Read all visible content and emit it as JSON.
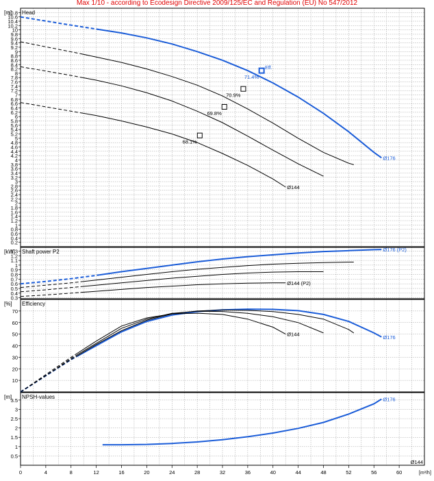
{
  "banner": "Max 1/10 - according to Ecodesign Directive 2009/125/EC and Regulation (EU) No 547/2012",
  "colors": {
    "blue": "#1a5cd8",
    "black": "#000000",
    "grid": "#9a9a9a",
    "frame": "#000000",
    "banner": "#e00000"
  },
  "chart_data": [
    {
      "type": "line",
      "title": "Head",
      "ylabel": "[m]",
      "xlim": [
        0,
        64
      ],
      "ylim": [
        0,
        11
      ],
      "y_ticks": [
        0.2,
        0.4,
        0.6,
        0.8,
        1.0,
        1.2,
        1.4,
        1.6,
        1.8,
        2.0,
        2.2,
        2.4,
        2.6,
        2.8,
        3.0,
        3.2,
        3.4,
        3.6,
        3.8,
        4.0,
        4.2,
        4.4,
        4.6,
        4.8,
        5.0,
        5.2,
        5.4,
        5.6,
        5.8,
        6.0,
        6.2,
        6.4,
        6.6,
        6.8,
        7.0,
        7.2,
        7.4,
        7.6,
        7.8,
        8.0,
        8.2,
        8.4,
        8.6,
        8.8,
        9.0,
        9.2,
        9.4,
        9.6,
        9.8,
        10.0,
        10.2,
        10.4,
        10.6,
        10.8
      ],
      "grid": true,
      "series": [
        {
          "name": "Ø176",
          "color": "blue",
          "dashed_until": 12.5,
          "x": [
            0,
            4,
            8,
            12,
            16,
            20,
            24,
            28,
            32,
            36,
            40,
            44,
            48,
            52,
            56,
            57.2
          ],
          "y": [
            10.6,
            10.41,
            10.22,
            10.04,
            9.86,
            9.63,
            9.35,
            9.0,
            8.6,
            8.12,
            7.55,
            6.9,
            6.15,
            5.3,
            4.35,
            4.1
          ]
        },
        {
          "name": "",
          "color": "black",
          "dashed_until": 9.5,
          "x": [
            0,
            4,
            8,
            12,
            16,
            20,
            24,
            28,
            32,
            36,
            40,
            44,
            48,
            52,
            52.8
          ],
          "y": [
            9.45,
            9.22,
            8.99,
            8.75,
            8.5,
            8.2,
            7.85,
            7.45,
            6.95,
            6.35,
            5.7,
            5.0,
            4.35,
            3.85,
            3.78
          ]
        },
        {
          "name": "",
          "color": "black",
          "dashed_until": 9.5,
          "x": [
            0,
            4,
            8,
            12,
            16,
            20,
            24,
            28,
            32,
            36,
            40,
            44,
            48
          ],
          "y": [
            8.3,
            8.1,
            7.9,
            7.68,
            7.42,
            7.1,
            6.72,
            6.25,
            5.72,
            5.1,
            4.45,
            3.82,
            3.25
          ]
        },
        {
          "name": "Ø144",
          "color": "black",
          "dashed_until": 9.5,
          "x": [
            0,
            4,
            8,
            12,
            16,
            20,
            24,
            28,
            32,
            36,
            40,
            42
          ],
          "y": [
            6.65,
            6.45,
            6.25,
            6.05,
            5.8,
            5.52,
            5.2,
            4.8,
            4.3,
            3.75,
            3.12,
            2.75
          ]
        }
      ],
      "efficiency_points": [
        {
          "x": 38.2,
          "y": 8.12,
          "label": "71.4%",
          "color": "blue",
          "mark": "Eff."
        },
        {
          "x": 35.3,
          "y": 7.28,
          "label": "70.9%",
          "color": "black"
        },
        {
          "x": 32.3,
          "y": 6.45,
          "label": "69.8%",
          "color": "black"
        },
        {
          "x": 28.4,
          "y": 5.13,
          "label": "68.1%",
          "color": "black"
        }
      ]
    },
    {
      "type": "line",
      "title": "Shaft power P2",
      "ylabel": "[kW]",
      "xlim": [
        0,
        64
      ],
      "ylim": [
        0.28,
        1.38
      ],
      "y_ticks": [
        0.3,
        0.4,
        0.5,
        0.6,
        0.7,
        0.8,
        0.9,
        1.0,
        1.1,
        1.2,
        1.3
      ],
      "grid": true,
      "series": [
        {
          "name": "Ø176 (P2)",
          "color": "blue",
          "dashed_until": 12.5,
          "x": [
            0,
            4,
            8,
            12,
            16,
            20,
            24,
            28,
            32,
            36,
            40,
            44,
            48,
            52,
            56,
            57.2
          ],
          "y": [
            0.6,
            0.65,
            0.71,
            0.78,
            0.86,
            0.93,
            1.0,
            1.07,
            1.13,
            1.18,
            1.22,
            1.26,
            1.29,
            1.31,
            1.33,
            1.335
          ]
        },
        {
          "name": "",
          "color": "black",
          "dashed_until": 9.5,
          "x": [
            0,
            4,
            8,
            12,
            16,
            20,
            24,
            28,
            32,
            36,
            40,
            44,
            48,
            52,
            52.8
          ],
          "y": [
            0.52,
            0.57,
            0.62,
            0.68,
            0.74,
            0.8,
            0.86,
            0.91,
            0.95,
            0.99,
            1.02,
            1.04,
            1.055,
            1.065,
            1.065
          ]
        },
        {
          "name": "",
          "color": "black",
          "dashed_until": 9.5,
          "x": [
            0,
            4,
            8,
            12,
            16,
            20,
            24,
            28,
            32,
            36,
            40,
            44,
            48
          ],
          "y": [
            0.43,
            0.47,
            0.52,
            0.57,
            0.62,
            0.67,
            0.72,
            0.76,
            0.8,
            0.83,
            0.85,
            0.86,
            0.86
          ]
        },
        {
          "name": "Ø144 (P2)",
          "color": "black",
          "dashed_until": 9.5,
          "x": [
            0,
            4,
            8,
            12,
            16,
            20,
            24,
            28,
            32,
            36,
            40,
            42
          ],
          "y": [
            0.33,
            0.36,
            0.4,
            0.44,
            0.48,
            0.52,
            0.55,
            0.58,
            0.6,
            0.615,
            0.62,
            0.62
          ]
        }
      ]
    },
    {
      "type": "line",
      "title": "Efficiency",
      "ylabel": "[%]",
      "xlim": [
        0,
        64
      ],
      "ylim": [
        0,
        80
      ],
      "y_ticks": [
        10,
        20,
        30,
        40,
        50,
        60,
        70
      ],
      "grid": true,
      "series": [
        {
          "name": "Ø176",
          "color": "blue",
          "dashed_until": 9,
          "x": [
            0,
            4,
            8,
            12,
            16,
            20,
            24,
            28,
            32,
            36,
            40,
            44,
            48,
            52,
            56,
            57.2
          ],
          "y": [
            0,
            14,
            28,
            40,
            52,
            61,
            66.5,
            69.5,
            71,
            71.5,
            71.4,
            70.3,
            67,
            61,
            51,
            47.5
          ]
        },
        {
          "name": "",
          "color": "black",
          "dashed_until": 9,
          "x": [
            0,
            4,
            8,
            12,
            16,
            20,
            24,
            28,
            32,
            36,
            40,
            44,
            48,
            52,
            52.8
          ],
          "y": [
            0,
            14,
            28,
            41,
            53,
            62,
            67.5,
            70,
            70.9,
            70.6,
            69.5,
            67,
            63,
            54,
            51
          ]
        },
        {
          "name": "",
          "color": "black",
          "dashed_until": 9,
          "x": [
            0,
            4,
            8,
            12,
            16,
            20,
            24,
            28,
            32,
            36,
            40,
            44,
            48
          ],
          "y": [
            0,
            14,
            29,
            42,
            55,
            63,
            68,
            69.8,
            69.6,
            68,
            65,
            60,
            51
          ]
        },
        {
          "name": "Ø144",
          "color": "black",
          "dashed_until": 9,
          "x": [
            0,
            4,
            8,
            12,
            16,
            20,
            24,
            28,
            32,
            36,
            40,
            42
          ],
          "y": [
            0,
            15,
            30,
            44,
            57,
            64,
            67.5,
            68.1,
            67,
            63,
            56,
            50
          ]
        }
      ]
    },
    {
      "type": "line",
      "title": "NPSH-values",
      "ylabel": "[m]",
      "xlabel": "[m³/h]",
      "xlim": [
        0,
        64
      ],
      "ylim": [
        0,
        3.9
      ],
      "x_ticks": [
        0,
        4,
        8,
        12,
        16,
        20,
        24,
        28,
        32,
        36,
        40,
        44,
        48,
        52,
        56,
        60
      ],
      "y_ticks": [
        0.5,
        1.0,
        1.5,
        2.0,
        2.5,
        3.0,
        3.5
      ],
      "grid": true,
      "series": [
        {
          "name": "Ø176",
          "color": "blue",
          "x": [
            13,
            16,
            20,
            24,
            28,
            32,
            36,
            40,
            44,
            48,
            52,
            56,
            57.2
          ],
          "y": [
            1.1,
            1.1,
            1.12,
            1.17,
            1.25,
            1.37,
            1.53,
            1.73,
            1.98,
            2.3,
            2.75,
            3.3,
            3.55
          ]
        }
      ],
      "corner_label": "Ø144"
    }
  ]
}
